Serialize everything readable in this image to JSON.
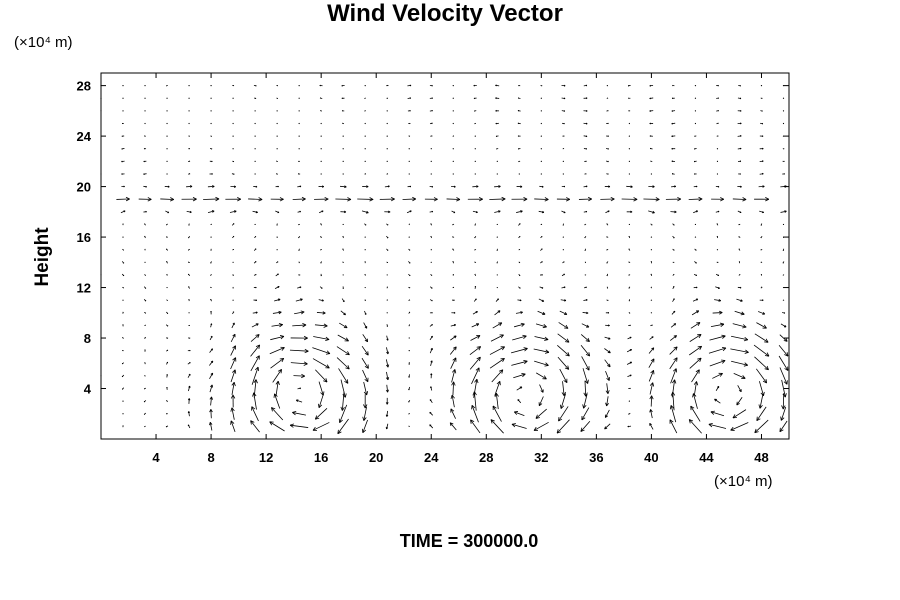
{
  "chart_data": {
    "type": "vector-field",
    "title": "Wind Velocity Vector",
    "ylabel": "Height",
    "xlabel": "",
    "x_unit_label": "(×10⁴ m)",
    "y_unit_label": "(×10⁴ m)",
    "footer": "TIME = 300000.0",
    "xlim": [
      0,
      50
    ],
    "ylim": [
      0,
      29
    ],
    "x_ticks": [
      4,
      8,
      12,
      16,
      20,
      24,
      28,
      32,
      36,
      40,
      44,
      48
    ],
    "y_ticks": [
      4,
      8,
      12,
      16,
      20,
      24,
      28
    ],
    "grid": false,
    "jet_level": 19,
    "vortices": [
      {
        "x": 14.5,
        "y": 3.5,
        "rotation": "clockwise"
      },
      {
        "x": 31,
        "y": 3.5,
        "rotation": "clockwise"
      },
      {
        "x": 45.5,
        "y": 3.5,
        "rotation": "clockwise"
      }
    ]
  }
}
